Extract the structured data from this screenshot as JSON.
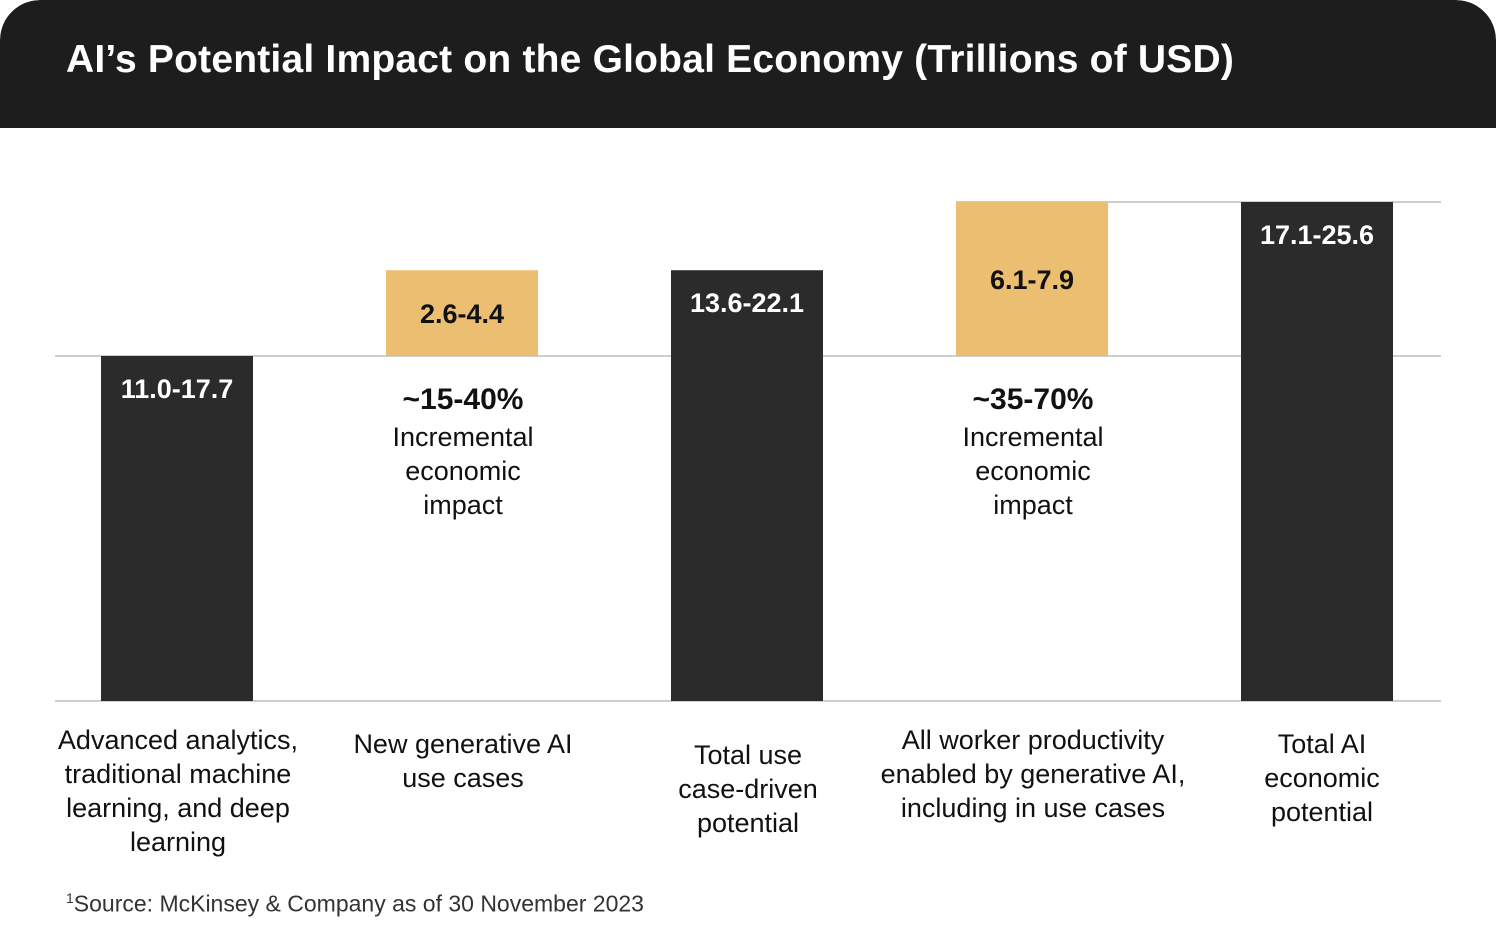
{
  "title": "AI’s Potential Impact on the Global Economy (Trillions of USD)",
  "colors": {
    "dark": "#2b2b2b",
    "gold": "#ebbe72",
    "header": "#1d1d1d",
    "grid": "#bdbdbd"
  },
  "chart_data": {
    "type": "bar",
    "subtype": "waterfall",
    "title": "AI’s Potential Impact on the Global Economy (Trillions of USD)",
    "unit": "Trillions of USD",
    "bars": [
      {
        "category": "Advanced analytics, traditional machine learning, and deep learning",
        "label": "11.0-17.7",
        "low": 11.0,
        "high": 17.7,
        "base": 0,
        "top": 17.7,
        "kind": "total",
        "color": "#2b2b2b"
      },
      {
        "category": "New generative AI use cases",
        "label": "2.6-4.4",
        "low": 2.6,
        "high": 4.4,
        "base": 17.7,
        "top": 22.1,
        "kind": "increment",
        "color": "#ebbe72"
      },
      {
        "category": "Total use case-driven potential",
        "label": "13.6-22.1",
        "low": 13.6,
        "high": 22.1,
        "base": 0,
        "top": 22.1,
        "kind": "total",
        "color": "#2b2b2b"
      },
      {
        "category": "All worker productivity enabled by generative AI, including in use cases",
        "label": "6.1-7.9",
        "low": 6.1,
        "high": 7.9,
        "base": 17.7,
        "top": 25.6,
        "kind": "increment",
        "color": "#ebbe72"
      },
      {
        "category": "Total AI economic potential",
        "label": "17.1-25.6",
        "low": 17.1,
        "high": 25.6,
        "base": 0,
        "top": 25.6,
        "kind": "total",
        "color": "#2b2b2b"
      }
    ],
    "reference_lines": [
      17.7,
      25.6
    ],
    "ylim": [
      0,
      25.6
    ],
    "annotations": [
      {
        "bar": 1,
        "percent": "~15-40%",
        "text": "Incremental economic impact"
      },
      {
        "bar": 3,
        "percent": "~35-70%",
        "text": "Incremental economic impact"
      }
    ],
    "xlabel": "",
    "ylabel": "",
    "grid": false,
    "legend": "none"
  },
  "labels": [
    "Advanced analytics, traditional machine learning, and deep learning",
    "New generative AI use cases",
    "Total use case-driven potential",
    "All worker productivity enabled by generative AI, including in use cases",
    "Total AI economic potential"
  ],
  "annotations": [
    {
      "percent": "~15-40%",
      "text": "Incremental economic impact"
    },
    {
      "percent": "~35-70%",
      "text": "Incremental economic impact"
    }
  ],
  "source": {
    "superscript": "1",
    "text": "Source: McKinsey & Company as of 30 November 2023"
  }
}
